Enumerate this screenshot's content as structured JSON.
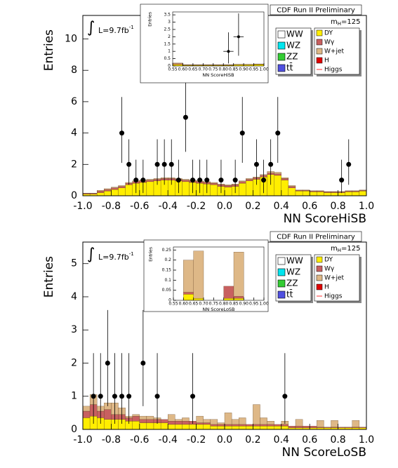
{
  "chart_data": [
    {
      "type": "histogram",
      "title": "CDF Run II Preliminary",
      "integral": "∫",
      "lumi": "L=9.7fb",
      "lumi_sup": "-1",
      "mass_symbol": "m",
      "mass_sub": "H",
      "mass_value": "=125",
      "y_label": "Entries",
      "x_label": "NN ScoreHiSB",
      "xlim": [
        -1,
        1
      ],
      "ylim": [
        0,
        11.5
      ],
      "xticks": [
        {
          "value": -1,
          "label": "-1.0"
        },
        -0.8,
        -0.6,
        -0.4,
        -0.2,
        {
          "value": 0,
          "label": "0.0"
        },
        0.2,
        0.4,
        0.6,
        0.8,
        {
          "value": 1,
          "label": "1.0"
        }
      ],
      "yticks": [
        0,
        2,
        4,
        6,
        8,
        10
      ],
      "bins": [
        -1,
        -0.95,
        -0.9,
        -0.85,
        -0.8,
        -0.75,
        -0.7,
        -0.65,
        -0.6,
        -0.55,
        -0.5,
        -0.45,
        -0.4,
        -0.35,
        -0.3,
        -0.25,
        -0.2,
        -0.15,
        -0.1,
        -0.05,
        0,
        0.05,
        0.1,
        0.15,
        0.2,
        0.25,
        0.3,
        0.35,
        0.4,
        0.45,
        0.5,
        0.55,
        0.6,
        0.65,
        0.7,
        0.75,
        0.8,
        0.85,
        0.9,
        0.95,
        1
      ],
      "legend_left": [
        {
          "name": "WW",
          "color": "#ffffff"
        },
        {
          "name": "WZ",
          "color": "#00e5ee"
        },
        {
          "name": "ZZ",
          "color": "#33cc33"
        },
        {
          "name": "tt̄",
          "color": "#5050e0"
        }
      ],
      "series": [
        {
          "name": "DY",
          "color": "#ffee00",
          "values": [
            0.1,
            0.1,
            0.2,
            0.3,
            0.4,
            0.5,
            0.7,
            0.8,
            0.85,
            0.9,
            0.95,
            1.0,
            1.0,
            0.95,
            0.9,
            0.85,
            0.8,
            0.75,
            0.7,
            0.6,
            0.55,
            0.6,
            0.8,
            0.95,
            1.05,
            1.2,
            1.35,
            1.3,
            1.0,
            0.5,
            0.3,
            0.3,
            0.25,
            0.25,
            0.2,
            0.2,
            0.2,
            0.25,
            0.25,
            0.3
          ]
        },
        {
          "name": "Wγ",
          "color": "#c86060",
          "values": [
            0.05,
            0.05,
            0.1,
            0.1,
            0.1,
            0.1,
            0.1,
            0.1,
            0.1,
            0.1,
            0.1,
            0.1,
            0.1,
            0.1,
            0.1,
            0.1,
            0.1,
            0.1,
            0.1,
            0.1,
            0.1,
            0.1,
            0.1,
            0.1,
            0.1,
            0.1,
            0.1,
            0.1,
            0.1,
            0.1,
            0.05,
            0.05,
            0.05,
            0.05,
            0.05,
            0.05,
            0.05,
            0.05,
            0.05,
            0.05
          ]
        },
        {
          "name": "W+jet",
          "color": "#deb887",
          "values": [
            0.02,
            0.02,
            0.05,
            0.05,
            0.05,
            0.05,
            0.05,
            0.05,
            0.05,
            0.05,
            0.05,
            0.05,
            0.05,
            0.05,
            0.05,
            0.05,
            0.05,
            0.05,
            0.05,
            0.05,
            0.05,
            0.05,
            0.05,
            0.05,
            0.05,
            0.05,
            0.1,
            0.1,
            0.05,
            0.05,
            0.02,
            0.02,
            0.02,
            0.02,
            0.02,
            0.02,
            0.02,
            0.02,
            0.02,
            0.02
          ]
        }
      ],
      "legend_right_extra": [
        {
          "name": "H",
          "color": "#e00000"
        },
        {
          "name": "Higgs",
          "color": "#ff3030",
          "line": true
        }
      ],
      "points": {
        "x": [
          -0.725,
          -0.675,
          -0.625,
          -0.575,
          -0.475,
          -0.425,
          -0.375,
          -0.325,
          -0.275,
          -0.225,
          -0.175,
          -0.125,
          -0.025,
          0.075,
          0.125,
          0.225,
          0.275,
          0.325,
          0.375,
          0.825,
          0.875
        ],
        "y": [
          4,
          2,
          1,
          1,
          2,
          2,
          2,
          1,
          5,
          1,
          1,
          1,
          1,
          1,
          4,
          2,
          1,
          2,
          4,
          1,
          2
        ],
        "err_low": [
          1.9,
          1.3,
          0.83,
          0.83,
          1.3,
          1.3,
          1.3,
          0.83,
          2.2,
          0.83,
          0.83,
          0.83,
          0.83,
          0.83,
          1.9,
          1.3,
          0.83,
          1.3,
          1.9,
          0.83,
          1.3
        ],
        "err_high": [
          2.3,
          1.6,
          1.3,
          1.3,
          1.6,
          1.6,
          1.6,
          1.3,
          2.6,
          1.3,
          1.3,
          1.3,
          1.3,
          1.3,
          2.3,
          1.6,
          1.3,
          1.6,
          2.3,
          1.3,
          1.6
        ]
      }
    },
    {
      "type": "histogram",
      "y_label": "Entries",
      "x_label": "NN ScoreHiSB",
      "xlim": [
        0.55,
        1
      ],
      "ylim": [
        0,
        3.7
      ],
      "xticks": [
        0.55,
        {
          "value": 0.6,
          "label": "0.60"
        },
        0.65,
        {
          "value": 0.7,
          "label": "0.70"
        },
        0.75,
        {
          "value": 0.8,
          "label": "0.80"
        },
        0.85,
        {
          "value": 0.9,
          "label": "0.90"
        },
        0.95,
        {
          "value": 1,
          "label": "1.00"
        }
      ],
      "yticks": [
        0,
        0.5,
        1,
        1.5,
        2,
        2.5,
        3,
        3.5
      ],
      "bins": [
        0.55,
        0.6,
        0.65,
        0.7,
        0.75,
        0.8,
        0.85,
        0.9,
        0.95,
        1
      ],
      "series": [
        {
          "color": "#ffee00",
          "values": [
            0.1,
            0.05,
            0.05,
            0.05,
            0.05,
            0.05,
            0.08,
            0.08,
            0.1
          ]
        },
        {
          "color": "#c86060",
          "values": [
            0.05,
            0.02,
            0.02,
            0.02,
            0.02,
            0.02,
            0.02,
            0.02,
            0.02
          ]
        },
        {
          "color": "#deb887",
          "values": [
            0.05,
            0.02,
            0.01,
            0.01,
            0.01,
            0.01,
            0.01,
            0.01,
            0.01
          ]
        }
      ],
      "points": {
        "x": [
          0.825,
          0.875
        ],
        "y": [
          1,
          2
        ],
        "err_low": [
          0.83,
          1.3
        ],
        "err_high": [
          1.3,
          1.6
        ],
        "xerr": [
          0.025,
          0.025
        ]
      }
    },
    {
      "type": "histogram",
      "title": "CDF Run II Preliminary",
      "integral": "∫",
      "lumi": "L=9.7fb",
      "lumi_sup": "-1",
      "mass_symbol": "m",
      "mass_sub": "H",
      "mass_value": "=125",
      "y_label": "Entries",
      "x_label": "NN ScoreLoSB",
      "xlim": [
        -1,
        1
      ],
      "ylim": [
        0,
        5.65
      ],
      "xticks": [
        {
          "value": -1,
          "label": "-1.0"
        },
        -0.8,
        -0.6,
        -0.4,
        -0.2,
        {
          "value": 0,
          "label": "0.0"
        },
        0.2,
        0.4,
        0.6,
        0.8,
        {
          "value": 1,
          "label": "1.0"
        }
      ],
      "yticks": [
        0,
        1,
        2,
        3,
        4,
        5
      ],
      "bins": [
        -1,
        -0.95,
        -0.9,
        -0.85,
        -0.8,
        -0.75,
        -0.7,
        -0.65,
        -0.6,
        -0.55,
        -0.5,
        -0.45,
        -0.4,
        -0.35,
        -0.3,
        -0.25,
        -0.2,
        -0.15,
        -0.1,
        -0.05,
        0,
        0.05,
        0.1,
        0.15,
        0.2,
        0.25,
        0.3,
        0.35,
        0.4,
        0.45,
        0.5,
        0.55,
        0.6,
        0.65,
        0.7,
        0.75,
        0.8,
        0.85,
        0.9,
        0.95,
        1
      ],
      "legend_left": [
        {
          "name": "WW",
          "color": "#ffffff"
        },
        {
          "name": "WZ",
          "color": "#00e5ee"
        },
        {
          "name": "ZZ",
          "color": "#33cc33"
        },
        {
          "name": "tt̄",
          "color": "#5050e0"
        }
      ],
      "series": [
        {
          "name": "DY",
          "color": "#ffee00",
          "values": [
            0.35,
            0.4,
            0.35,
            0.3,
            0.3,
            0.3,
            0.25,
            0.25,
            0.2,
            0.2,
            0.2,
            0.2,
            0.15,
            0.15,
            0.15,
            0.15,
            0.15,
            0.15,
            0.1,
            0.1,
            0.1,
            0.1,
            0.1,
            0.1,
            0.1,
            0.1,
            0.1,
            0.1,
            0.1,
            0.05,
            0.05,
            0.05,
            0.05,
            0.05,
            0.05,
            0.05,
            0.05,
            0.05,
            0.05,
            0.05
          ]
        },
        {
          "name": "Wγ",
          "color": "#c86060",
          "values": [
            0.2,
            0.35,
            0.2,
            0.3,
            0.15,
            0.15,
            0.1,
            0.15,
            0.1,
            0.1,
            0.1,
            0.1,
            0.1,
            0.1,
            0.1,
            0.1,
            0.05,
            0.05,
            0.05,
            0.05,
            0.05,
            0.05,
            0.05,
            0.05,
            0.05,
            0.05,
            0.05,
            0.05,
            0.05,
            0.05,
            0.05,
            0.05,
            0.05,
            0.02,
            0.02,
            0.02,
            0.02,
            0.02,
            0.02,
            0.02
          ]
        },
        {
          "name": "W+jet",
          "color": "#deb887",
          "values": [
            0.15,
            0.3,
            0.15,
            0.2,
            0.35,
            0.2,
            0.05,
            0.05,
            0.1,
            0.1,
            0.05,
            0,
            0.2,
            0.05,
            0.1,
            0,
            0.2,
            0.1,
            0.15,
            0.05,
            0.35,
            0.15,
            0.2,
            0,
            0.6,
            0.2,
            0.1,
            0,
            0.1,
            0,
            0.2,
            0,
            0,
            0.2,
            0,
            0.2,
            0,
            0,
            0.2,
            0
          ]
        }
      ],
      "legend_right_extra": [
        {
          "name": "H",
          "color": "#e00000"
        },
        {
          "name": "Higgs",
          "color": "#ff3030",
          "line": true
        }
      ],
      "points": {
        "x": [
          -0.925,
          -0.875,
          -0.825,
          -0.775,
          -0.725,
          -0.675,
          -0.575,
          -0.475,
          -0.225,
          0.425
        ],
        "y": [
          1,
          1,
          2,
          1,
          1,
          1,
          2,
          1,
          1,
          1
        ],
        "err_low": [
          0.83,
          0.83,
          1.3,
          0.83,
          0.83,
          0.83,
          1.3,
          0.83,
          0.83,
          0.83
        ],
        "err_high": [
          1.3,
          1.3,
          1.6,
          1.3,
          1.3,
          1.3,
          1.6,
          1.3,
          1.3,
          1.3
        ]
      }
    },
    {
      "type": "histogram",
      "y_label": "Entries",
      "x_label": "NN ScoreLoSB",
      "xlim": [
        0.55,
        1
      ],
      "ylim": [
        0,
        0.265
      ],
      "xticks": [
        0.55,
        {
          "value": 0.6,
          "label": "0.60"
        },
        0.65,
        {
          "value": 0.7,
          "label": "0.70"
        },
        0.75,
        {
          "value": 0.8,
          "label": "0.80"
        },
        0.85,
        {
          "value": 0.9,
          "label": "0.90"
        },
        0.95,
        {
          "value": 1,
          "label": "1.00"
        }
      ],
      "yticks": [
        0,
        0.05,
        0.1,
        0.15,
        0.2,
        0.25
      ],
      "bins": [
        0.55,
        0.6,
        0.65,
        0.7,
        0.75,
        0.8,
        0.85,
        0.9,
        0.95,
        1
      ],
      "series": [
        {
          "color": "#ffee00",
          "values": [
            0,
            0.03,
            0.01,
            0,
            0,
            0.01,
            0.01,
            0,
            0
          ]
        },
        {
          "color": "#c86060",
          "values": [
            0,
            0.01,
            0,
            0,
            0,
            0.06,
            0.01,
            0,
            0
          ]
        },
        {
          "color": "#deb887",
          "values": [
            0,
            0.16,
            0.235,
            0,
            0,
            0,
            0.22,
            0,
            0
          ]
        }
      ]
    }
  ]
}
